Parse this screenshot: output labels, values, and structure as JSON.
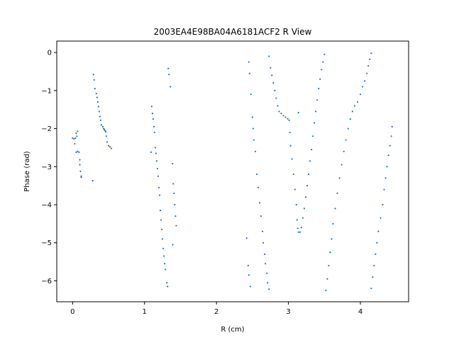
{
  "chart_data": {
    "type": "scatter",
    "title": "2003EA4E98BA04A6181ACF2 R View",
    "xlabel": "R (cm)",
    "ylabel": "Phase (rad)",
    "xlim": [
      -0.22,
      4.67
    ],
    "ylim": [
      -6.55,
      0.3
    ],
    "xticks": [
      0,
      1,
      2,
      3,
      4
    ],
    "yticks": [
      0,
      -1,
      -2,
      -3,
      -4,
      -5,
      -6
    ],
    "grid": false,
    "legend": "none",
    "marker_color": "#1f77b4",
    "series": [
      {
        "values": [
          [
            0.0,
            -2.25
          ],
          [
            0.02,
            -2.27
          ],
          [
            0.03,
            -2.4
          ],
          [
            0.04,
            -2.25
          ],
          [
            0.05,
            -2.12
          ],
          [
            0.06,
            -2.2
          ],
          [
            0.07,
            -2.07
          ],
          [
            0.05,
            -2.62
          ],
          [
            0.07,
            -2.6
          ],
          [
            0.09,
            -2.62
          ],
          [
            0.1,
            -2.82
          ],
          [
            0.1,
            -2.95
          ],
          [
            0.11,
            -3.12
          ],
          [
            0.12,
            -3.25
          ],
          [
            0.12,
            -3.28
          ],
          [
            0.28,
            -3.37
          ],
          [
            0.29,
            -0.58
          ],
          [
            0.3,
            -0.72
          ],
          [
            0.31,
            -0.95
          ],
          [
            0.33,
            -1.08
          ],
          [
            0.34,
            -1.18
          ],
          [
            0.35,
            -1.3
          ],
          [
            0.36,
            -1.42
          ],
          [
            0.37,
            -1.55
          ],
          [
            0.38,
            -1.68
          ],
          [
            0.39,
            -1.78
          ],
          [
            0.4,
            -1.9
          ],
          [
            0.42,
            -1.95
          ],
          [
            0.43,
            -2.0
          ],
          [
            0.44,
            -2.02
          ],
          [
            0.45,
            -2.05
          ],
          [
            0.46,
            -2.08
          ],
          [
            0.47,
            -2.2
          ],
          [
            0.48,
            -2.35
          ],
          [
            0.5,
            -2.45
          ],
          [
            0.52,
            -2.48
          ],
          [
            0.54,
            -2.52
          ],
          [
            1.09,
            -2.62
          ],
          [
            1.1,
            -1.42
          ],
          [
            1.11,
            -1.6
          ],
          [
            1.12,
            -1.75
          ],
          [
            1.13,
            -1.95
          ],
          [
            1.14,
            -2.1
          ],
          [
            1.15,
            -2.5
          ],
          [
            1.16,
            -2.65
          ],
          [
            1.17,
            -2.85
          ],
          [
            1.18,
            -3.05
          ],
          [
            1.19,
            -3.25
          ],
          [
            1.2,
            -3.55
          ],
          [
            1.21,
            -3.75
          ],
          [
            1.22,
            -4.15
          ],
          [
            1.23,
            -4.4
          ],
          [
            1.24,
            -4.65
          ],
          [
            1.25,
            -4.9
          ],
          [
            1.26,
            -5.15
          ],
          [
            1.27,
            -5.35
          ],
          [
            1.28,
            -5.55
          ],
          [
            1.29,
            -5.7
          ],
          [
            1.31,
            -6.05
          ],
          [
            1.32,
            -6.15
          ],
          [
            1.33,
            -0.42
          ],
          [
            1.34,
            -0.58
          ],
          [
            1.36,
            -0.9
          ],
          [
            1.39,
            -2.92
          ],
          [
            1.4,
            -3.45
          ],
          [
            1.41,
            -3.7
          ],
          [
            1.42,
            -4.0
          ],
          [
            1.43,
            -4.3
          ],
          [
            1.44,
            -4.55
          ],
          [
            1.39,
            -5.05
          ],
          [
            2.42,
            -4.88
          ],
          [
            2.44,
            -5.6
          ],
          [
            2.45,
            -5.85
          ],
          [
            2.47,
            -6.15
          ],
          [
            2.45,
            -0.25
          ],
          [
            2.46,
            -0.55
          ],
          [
            2.48,
            -1.1
          ],
          [
            2.5,
            -1.7
          ],
          [
            2.51,
            -2.0
          ],
          [
            2.52,
            -2.3
          ],
          [
            2.54,
            -2.6
          ],
          [
            2.56,
            -3.2
          ],
          [
            2.58,
            -3.55
          ],
          [
            2.6,
            -3.95
          ],
          [
            2.62,
            -4.3
          ],
          [
            2.64,
            -4.7
          ],
          [
            2.65,
            -5.0
          ],
          [
            2.67,
            -5.3
          ],
          [
            2.68,
            -5.55
          ],
          [
            2.7,
            -5.8
          ],
          [
            2.71,
            -6.05
          ],
          [
            2.73,
            -6.22
          ],
          [
            2.73,
            -0.1
          ],
          [
            2.75,
            -0.4
          ],
          [
            2.77,
            -0.6
          ],
          [
            2.79,
            -0.8
          ],
          [
            2.81,
            -1.0
          ],
          [
            2.83,
            -1.2
          ],
          [
            2.85,
            -1.4
          ],
          [
            2.87,
            -1.55
          ],
          [
            2.9,
            -1.6
          ],
          [
            2.93,
            -1.66
          ],
          [
            2.96,
            -1.7
          ],
          [
            2.99,
            -1.74
          ],
          [
            3.01,
            -1.78
          ],
          [
            3.02,
            -2.1
          ],
          [
            3.03,
            -2.45
          ],
          [
            3.05,
            -2.8
          ],
          [
            3.07,
            -3.2
          ],
          [
            3.09,
            -3.6
          ],
          [
            3.11,
            -4.0
          ],
          [
            3.12,
            -4.4
          ],
          [
            3.13,
            -4.62
          ],
          [
            3.14,
            -4.72
          ],
          [
            3.16,
            -4.72
          ],
          [
            3.18,
            -4.6
          ],
          [
            3.2,
            -4.35
          ],
          [
            3.22,
            -4.1
          ],
          [
            3.24,
            -3.8
          ],
          [
            3.26,
            -3.5
          ],
          [
            3.28,
            -3.2
          ],
          [
            3.3,
            -2.85
          ],
          [
            3.32,
            -2.55
          ],
          [
            3.34,
            -2.2
          ],
          [
            3.36,
            -1.85
          ],
          [
            3.38,
            -1.55
          ],
          [
            3.4,
            -1.25
          ],
          [
            3.42,
            -0.95
          ],
          [
            3.44,
            -0.7
          ],
          [
            3.46,
            -0.45
          ],
          [
            3.48,
            -0.25
          ],
          [
            3.5,
            -0.05
          ],
          [
            3.14,
            -1.58
          ],
          [
            3.52,
            -6.25
          ],
          [
            3.54,
            -5.95
          ],
          [
            3.56,
            -5.6
          ],
          [
            3.58,
            -5.25
          ],
          [
            3.6,
            -4.9
          ],
          [
            3.62,
            -4.5
          ],
          [
            3.65,
            -4.1
          ],
          [
            3.68,
            -3.7
          ],
          [
            3.71,
            -3.3
          ],
          [
            3.74,
            -2.95
          ],
          [
            3.77,
            -2.6
          ],
          [
            3.8,
            -2.3
          ],
          [
            3.83,
            -2.0
          ],
          [
            3.86,
            -1.75
          ],
          [
            3.89,
            -1.55
          ],
          [
            3.92,
            -1.4
          ],
          [
            3.96,
            -1.3
          ],
          [
            4.0,
            -1.1
          ],
          [
            4.03,
            -0.9
          ],
          [
            4.06,
            -0.75
          ],
          [
            4.09,
            -0.55
          ],
          [
            4.11,
            -0.35
          ],
          [
            4.13,
            -0.18
          ],
          [
            4.15,
            -0.02
          ],
          [
            4.15,
            -6.2
          ],
          [
            4.17,
            -5.9
          ],
          [
            4.19,
            -5.6
          ],
          [
            4.21,
            -5.3
          ],
          [
            4.23,
            -5.0
          ],
          [
            4.25,
            -4.7
          ],
          [
            4.28,
            -4.35
          ],
          [
            4.31,
            -4.0
          ],
          [
            4.33,
            -3.6
          ],
          [
            4.35,
            -3.3
          ],
          [
            4.37,
            -3.0
          ],
          [
            4.39,
            -2.7
          ],
          [
            4.41,
            -2.45
          ],
          [
            4.43,
            -2.2
          ],
          [
            4.44,
            -1.95
          ]
        ]
      }
    ]
  }
}
